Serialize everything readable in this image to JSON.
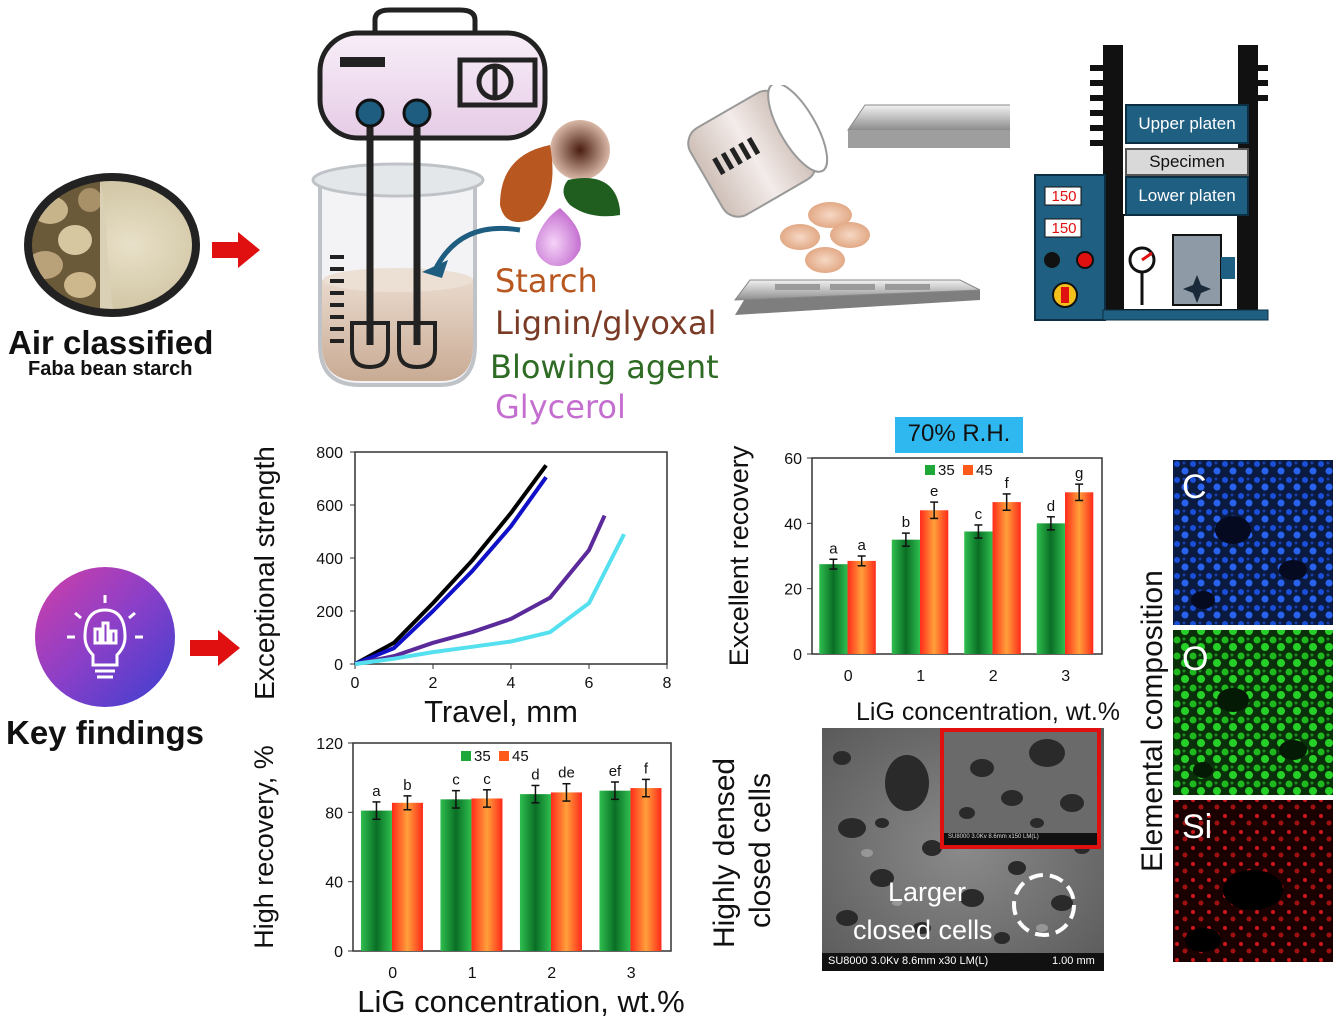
{
  "top": {
    "source_title": "Air classified",
    "source_subtitle": "Faba bean starch",
    "ingredients": [
      {
        "label": "Starch",
        "color": "#b8571f"
      },
      {
        "label": "Lignin/glyoxal",
        "color": "#7a3b26"
      },
      {
        "label": "Blowing agent",
        "color": "#2e6b24"
      },
      {
        "label": "Glycerol",
        "color": "#c46fd0"
      }
    ],
    "press": {
      "upper": "Upper platen",
      "specimen": "Specimen",
      "lower": "Lower platen",
      "display1": "150",
      "display2": "150"
    }
  },
  "key_findings": {
    "label": "Key findings"
  },
  "chart_data": [
    {
      "type": "line",
      "xlabel": "Travel, mm",
      "ylabel": "Exceptional strength",
      "xlim": [
        0,
        8
      ],
      "ylim": [
        0,
        800
      ],
      "xticks": [
        0,
        2,
        4,
        6,
        8
      ],
      "yticks": [
        0,
        200,
        400,
        600,
        800
      ],
      "series": [
        {
          "color": "#000000",
          "x": [
            0,
            1,
            2,
            3,
            4,
            4.9
          ],
          "y": [
            0,
            80,
            230,
            390,
            570,
            750
          ]
        },
        {
          "color": "#1010c8",
          "x": [
            0,
            1,
            2,
            3,
            4,
            4.9
          ],
          "y": [
            0,
            60,
            200,
            350,
            520,
            705
          ]
        },
        {
          "color": "#5a2a9a",
          "x": [
            0,
            1,
            2,
            3,
            4,
            5,
            6,
            6.4
          ],
          "y": [
            0,
            30,
            80,
            120,
            170,
            250,
            430,
            560
          ]
        },
        {
          "color": "#55e0f0",
          "x": [
            0,
            1,
            2,
            3,
            4,
            5,
            6,
            6.9
          ],
          "y": [
            0,
            20,
            45,
            65,
            85,
            120,
            230,
            490
          ]
        }
      ]
    },
    {
      "type": "bar",
      "header": "70% R.H.",
      "xlabel": "LiG concentration, wt.%",
      "ylabel": "Excellent recovery",
      "ylim": [
        0,
        60
      ],
      "yticks": [
        0,
        20,
        40,
        60
      ],
      "categories": [
        "0",
        "1",
        "2",
        "3"
      ],
      "series": [
        {
          "name": "35",
          "values": [
            27.5,
            35,
            37.5,
            40
          ],
          "errors": [
            1.5,
            2,
            2,
            2
          ],
          "letters": [
            "a",
            "b",
            "c",
            "d"
          ]
        },
        {
          "name": "45",
          "values": [
            28.5,
            44,
            46.5,
            49.5
          ],
          "errors": [
            1.5,
            2.5,
            2.5,
            2.5
          ],
          "letters": [
            "a",
            "e",
            "f",
            "g"
          ]
        }
      ]
    },
    {
      "type": "bar",
      "xlabel": "LiG concentration, wt.%",
      "ylabel": "High recovery, %",
      "ylim": [
        0,
        120
      ],
      "yticks": [
        0,
        40,
        80,
        120
      ],
      "categories": [
        "0",
        "1",
        "2",
        "3"
      ],
      "series": [
        {
          "name": "35",
          "values": [
            81,
            87.5,
            90.5,
            92.5
          ],
          "errors": [
            5,
            5,
            5,
            5
          ],
          "letters": [
            "a",
            "c",
            "d",
            "ef"
          ]
        },
        {
          "name": "45",
          "values": [
            85.5,
            88,
            91.5,
            94
          ],
          "errors": [
            4,
            5,
            5,
            5
          ],
          "letters": [
            "b",
            "c",
            "de",
            "f"
          ]
        }
      ]
    }
  ],
  "sem": {
    "label_line1": "Highly densed",
    "label_line2": "closed cells",
    "caption_line1": "Larger",
    "caption_line2": "closed cells",
    "scale_left": "SU8000 3.0Kv 8.6mm x30 LM(L)",
    "scale_right": "1.00 mm",
    "inset_scale": "SU8000 3.0Kv 8.6mm x150 LM(L)"
  },
  "composition": {
    "label": "Elemental composition",
    "elements": [
      {
        "symbol": "C",
        "color": "#1a4fd8"
      },
      {
        "symbol": "O",
        "color": "#1fb81f"
      },
      {
        "symbol": "Si",
        "color": "#d01818"
      }
    ]
  }
}
